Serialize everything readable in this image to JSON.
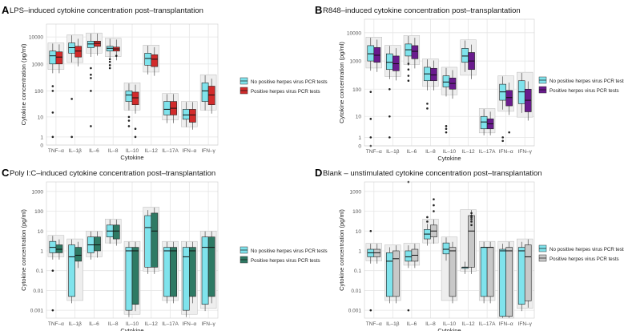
{
  "figure": {
    "palette": {
      "cyan": "#7fe3ec",
      "red": "#d22b2b",
      "purple": "#6a1b8e",
      "green": "#2e7a64",
      "grey": "#c8c8c8",
      "bg_box": "#eeeeee",
      "grid": "#e6e6e6"
    }
  },
  "chart_data": [
    {
      "panel": "A",
      "type": "box",
      "title": "LPS–induced cytokine concentration post–transplantation",
      "xlabel": "Cytokine",
      "ylabel": "Cytokine concentration (pg/ml)",
      "categories": [
        "TNF–α",
        "IL–1β",
        "IL–6",
        "IL–8",
        "IL–10",
        "IL–12",
        "IL–17A",
        "IFN–α",
        "IFN–γ"
      ],
      "yticks": [
        "0",
        "1",
        "10",
        "100",
        "1000",
        "10000"
      ],
      "ytick_values": [
        0,
        1,
        10,
        100,
        1000,
        10000
      ],
      "ylim": [
        0,
        30000
      ],
      "legend_position": "right",
      "series": [
        {
          "name": "No positive herpes virus PCR tests",
          "color": "#7fe3ec",
          "boxes": [
            [
              1000,
              2000,
              3000
            ],
            [
              2500,
              4000,
              6000
            ],
            [
              4000,
              5500,
              7000
            ],
            [
              3000,
              3800,
              4500
            ],
            [
              40,
              70,
              100
            ],
            [
              900,
              1600,
              2500
            ],
            [
              12,
              20,
              40
            ],
            [
              8,
              12,
              20
            ],
            [
              40,
              100,
              200
            ]
          ],
          "outliers": [
            [
              150,
              100,
              15,
              1
            ],
            [
              50,
              1
            ],
            [
              700,
              400,
              300,
              100,
              4
            ],
            [
              1500,
              1200,
              900,
              700
            ],
            [
              10,
              7,
              4
            ],
            [],
            [],
            [],
            []
          ]
        },
        {
          "name": "Positive herpes virus PCR tests",
          "color": "#d22b2b",
          "boxes": [
            [
              1000,
              1800,
              2800
            ],
            [
              1800,
              3000,
              4500
            ],
            [
              4500,
              5800,
              7000
            ],
            [
              3000,
              3600,
              4200
            ],
            [
              30,
              55,
              90
            ],
            [
              800,
              1500,
              2200
            ],
            [
              12,
              22,
              40
            ],
            [
              6,
              12,
              20
            ],
            [
              30,
              70,
              150
            ]
          ],
          "outliers": [
            [],
            [],
            [],
            [
              2000
            ],
            [
              3,
              1
            ],
            [],
            [],
            [],
            []
          ]
        }
      ]
    },
    {
      "panel": "B",
      "type": "box",
      "title": "R848–induced cytokine concentration post–transplantation",
      "xlabel": "Cytokine",
      "ylabel": "Cytokine concentration (pg/ml)",
      "categories": [
        "TNF–α",
        "IL–1β",
        "IL–6",
        "IL–8",
        "IL–10",
        "IL–12",
        "IL–17A",
        "IFN–α",
        "IFN–γ"
      ],
      "yticks": [
        "0",
        "1",
        "10",
        "100",
        "1000",
        "10000"
      ],
      "ytick_values": [
        0,
        1,
        10,
        100,
        1000,
        10000
      ],
      "ylim": [
        0,
        30000
      ],
      "legend_position": "right",
      "series": [
        {
          "name": "No positive herpes virus PCR tests",
          "color": "#7fe3ec",
          "boxes": [
            [
              1000,
              1800,
              3500
            ],
            [
              500,
              900,
              1800
            ],
            [
              1500,
              2500,
              4000
            ],
            [
              200,
              350,
              600
            ],
            [
              120,
              180,
              300
            ],
            [
              900,
              1500,
              2800
            ],
            [
              3,
              6,
              10
            ],
            [
              40,
              80,
              150
            ],
            [
              30,
              80,
              200
            ]
          ],
          "outliers": [
            [
              80,
              8,
              1,
              0
            ],
            [
              100,
              10,
              1
            ],
            [
              800,
              500,
              300,
              200
            ],
            [
              30,
              20
            ],
            [
              4,
              3,
              2
            ],
            [],
            [],
            [
              1,
              0.5
            ],
            []
          ]
        },
        {
          "name": "Positive herpes virus PCR tests",
          "color": "#6a1b8e",
          "boxes": [
            [
              900,
              1600,
              3000
            ],
            [
              450,
              800,
              1500
            ],
            [
              1200,
              2200,
              3500
            ],
            [
              200,
              320,
              550
            ],
            [
              100,
              160,
              250
            ],
            [
              500,
              1000,
              2000
            ],
            [
              3,
              5,
              8
            ],
            [
              25,
              50,
              90
            ],
            [
              15,
              40,
              100
            ]
          ],
          "outliers": [
            [],
            [],
            [],
            [],
            [],
            [],
            [],
            [
              2
            ],
            []
          ]
        }
      ]
    },
    {
      "panel": "C",
      "type": "box",
      "title": "Poly I:C–induced cytokine concentration post–transplantation",
      "xlabel": "Cytokine",
      "ylabel": "Cytokine concentration (pg/ml)",
      "categories": [
        "TNF–α",
        "IL–1β",
        "IL–6",
        "IL–8",
        "IL–10",
        "IL–12",
        "IL–17A",
        "IFN–α",
        "IFN–γ"
      ],
      "yticks": [
        "0.001",
        "0.01",
        "0.1",
        "1",
        "10",
        "100",
        "1000"
      ],
      "ytick_values": [
        0.001,
        0.01,
        0.1,
        1,
        10,
        100,
        1000
      ],
      "ylim": [
        0.0004,
        3000
      ],
      "legend_position": "right",
      "series": [
        {
          "name": "No positive herpes virus PCR tests",
          "color": "#7fe3ec",
          "boxes": [
            [
              0.8,
              1.5,
              3
            ],
            [
              0.005,
              0.5,
              2
            ],
            [
              0.8,
              2,
              5
            ],
            [
              5,
              10,
              20
            ],
            [
              0.001,
              1,
              1.5
            ],
            [
              0.15,
              15,
              60
            ],
            [
              0.005,
              1,
              1.5
            ],
            [
              0.001,
              0.5,
              1.5
            ],
            [
              0.002,
              1.5,
              5
            ]
          ],
          "outliers": [
            [
              0.1,
              0.001
            ],
            [],
            [],
            [],
            [],
            [],
            [],
            [],
            []
          ]
        },
        {
          "name": "Positive herpes virus PCR tests",
          "color": "#2e7a64",
          "boxes": [
            [
              0.8,
              1.2,
              2
            ],
            [
              0.3,
              0.6,
              1.5
            ],
            [
              1,
              2,
              5
            ],
            [
              4,
              10,
              20
            ],
            [
              0.002,
              1,
              1.5
            ],
            [
              0.15,
              10,
              80
            ],
            [
              0.005,
              1,
              1.5
            ],
            [
              0.005,
              1,
              1.5
            ],
            [
              0.005,
              1.5,
              5
            ]
          ],
          "outliers": [
            [],
            [],
            [],
            [],
            [],
            [],
            [],
            [],
            []
          ]
        }
      ]
    },
    {
      "panel": "D",
      "type": "box",
      "title": "Blank – unstimulated cytokine concentration post–transplantation",
      "xlabel": "Cytokine",
      "ylabel": "Cytokine concentration (pg/ml)",
      "categories": [
        "TNF–α",
        "IL–1β",
        "IL–6",
        "IL–8",
        "IL–10",
        "IL–12",
        "IL–17A",
        "IFN–α",
        "IFN–γ"
      ],
      "yticks": [
        "0.001",
        "0.01",
        "0.1",
        "1",
        "10",
        "100",
        "1000"
      ],
      "ytick_values": [
        0.001,
        0.01,
        0.1,
        1,
        10,
        100,
        1000
      ],
      "ylim": [
        0.0004,
        3000
      ],
      "legend_position": "right",
      "series": [
        {
          "name": "No positive herpes virus PCR tests",
          "color": "#7fe3ec",
          "boxes": [
            [
              0.5,
              0.8,
              1.2
            ],
            [
              0.005,
              0.3,
              0.8
            ],
            [
              0.3,
              0.5,
              1
            ],
            [
              4,
              7,
              12
            ],
            [
              0.7,
              1.2,
              2.5
            ],
            [
              0.15,
              0.15,
              0.15
            ],
            [
              0.005,
              1.5,
              1.5
            ],
            [
              0.0005,
              1,
              1.2
            ],
            [
              0.002,
              1,
              1.5
            ]
          ],
          "outliers": [
            [
              10,
              0.001
            ],
            [],
            [
              3000,
              0.001
            ],
            [
              50,
              30
            ],
            [],
            [],
            [],
            [],
            []
          ]
        },
        {
          "name": "Positive herpes virus PCR tests",
          "color": "#c8c8c8",
          "boxes": [
            [
              0.5,
              0.8,
              1.2
            ],
            [
              0.005,
              0.4,
              1
            ],
            [
              0.3,
              0.6,
              1.2
            ],
            [
              5,
              10,
              20
            ],
            [
              0.005,
              1,
              1.5
            ],
            [
              0.15,
              10,
              60
            ],
            [
              0.005,
              1.5,
              1.5
            ],
            [
              0.0005,
              1,
              1.5
            ],
            [
              0.003,
              0.5,
              2
            ]
          ],
          "outliers": [
            [],
            [],
            [],
            [
              400,
              200,
              100
            ],
            [],
            [
              80,
              60,
              50,
              40,
              30,
              20
            ],
            [],
            [],
            []
          ]
        }
      ]
    }
  ]
}
